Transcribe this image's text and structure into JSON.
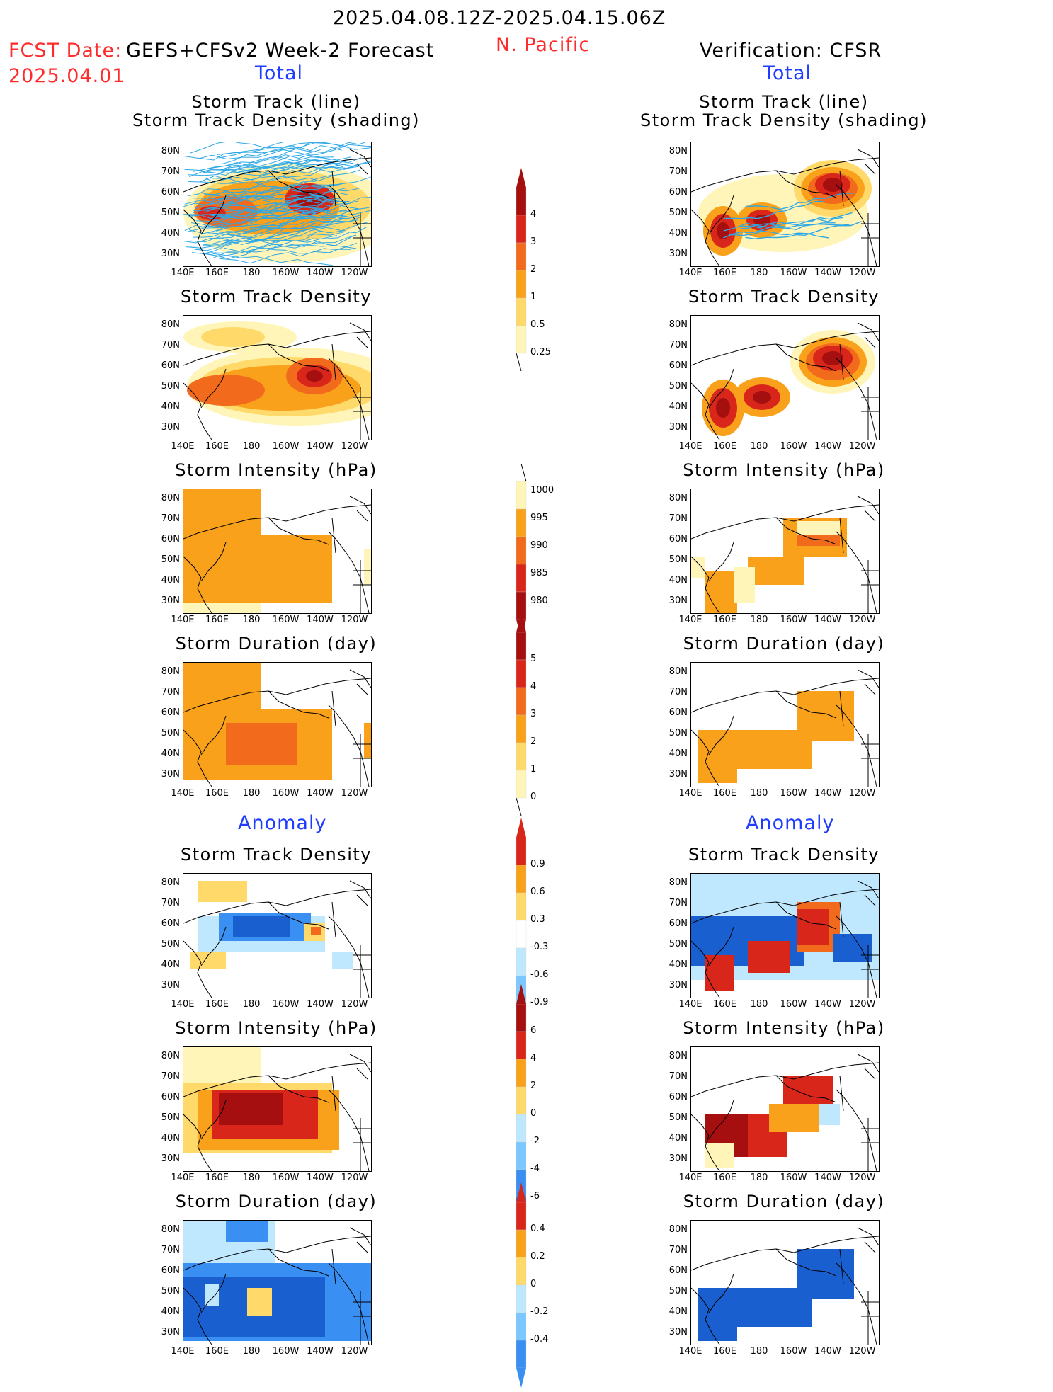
{
  "header": {
    "date_range": "2025.04.08.12Z-2025.04.15.06Z",
    "fcst_label": "FCST Date:",
    "fcst_date": "2025.04.01",
    "model": "GEFS+CFSv2 Week-2 Forecast",
    "region": "N. Pacific",
    "verification": "Verification: CFSR"
  },
  "sections": {
    "total": "Total",
    "anomaly": "Anomaly"
  },
  "panel_titles": {
    "track_line": "Storm Track (line)",
    "track_shading": "Storm Track Density (shading)",
    "density": "Storm Track Density",
    "intensity": "Storm Intensity (hPa)",
    "duration": "Storm Duration (day)"
  },
  "axes": {
    "lat_ticks": [
      "80N",
      "70N",
      "60N",
      "50N",
      "40N",
      "30N"
    ],
    "lon_ticks": [
      "140E",
      "160E",
      "180",
      "160W",
      "140W",
      "120W"
    ]
  },
  "colorbars": {
    "density": [
      "4",
      "3",
      "2",
      "1",
      "0.5",
      "0.25"
    ],
    "intensity": [
      "1000",
      "995",
      "990",
      "985",
      "980"
    ],
    "duration": [
      "5",
      "4",
      "3",
      "2",
      "1",
      "0"
    ],
    "density_anom": [
      "0.9",
      "0.6",
      "0.3",
      "-0.3",
      "-0.6",
      "-0.9"
    ],
    "intensity_anom": [
      "6",
      "4",
      "2",
      "0",
      "-2",
      "-4",
      "-6"
    ],
    "duration_anom": [
      "0.4",
      "0.2",
      "0",
      "-0.2",
      "-0.4"
    ]
  },
  "colors": {
    "light_yellow": "#fff5b8",
    "yellow": "#ffd96a",
    "orange": "#f9a11b",
    "dark_orange": "#f26b1d",
    "red": "#d8261a",
    "dark_red": "#a50f0f",
    "light_blue": "#bfe8ff",
    "mid_blue": "#7cc7ff",
    "blue": "#3a8ff2",
    "dark_blue": "#1a5fd0",
    "track_line": "#2ea8e6"
  }
}
